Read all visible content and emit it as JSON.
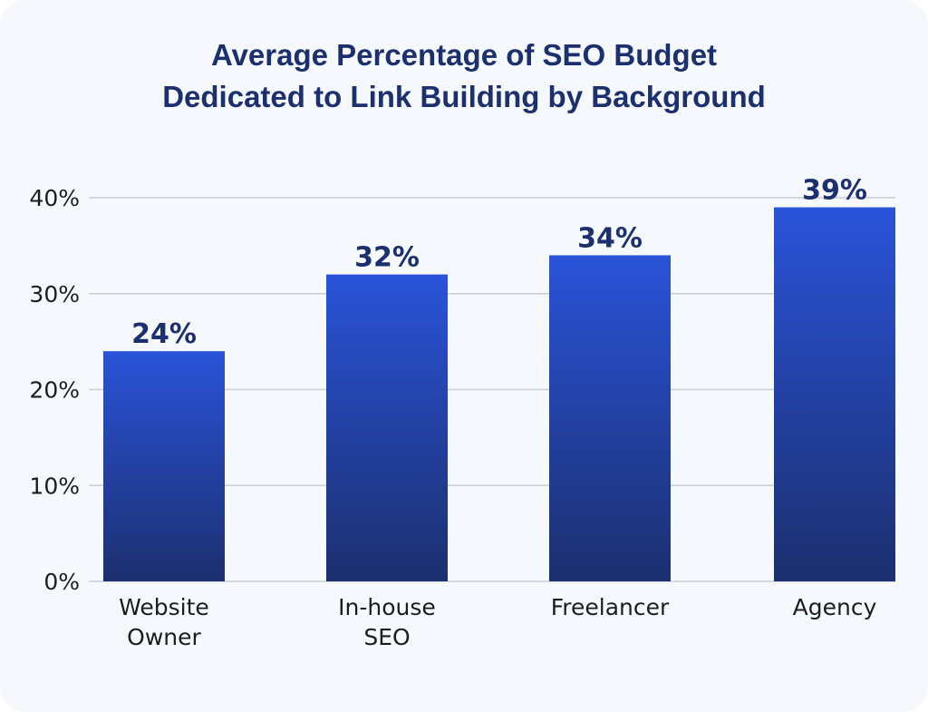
{
  "chart_data": {
    "type": "bar",
    "title_lines": [
      "Average Percentage of SEO Budget",
      "Dedicated to Link Building by Background"
    ],
    "categories": [
      [
        "Website",
        "Owner"
      ],
      [
        "In-house",
        "SEO"
      ],
      [
        "Freelancer"
      ],
      [
        "Agency"
      ]
    ],
    "values": [
      24,
      32,
      34,
      39
    ],
    "data_labels": [
      "24%",
      "32%",
      "34%",
      "39%"
    ],
    "y_ticks": [
      0,
      10,
      20,
      30,
      40
    ],
    "y_tick_labels": [
      "0%",
      "10%",
      "20%",
      "30%",
      "40%"
    ],
    "ylim": [
      0,
      40
    ],
    "grid": true,
    "colors": {
      "bar_top": "#2a53d8",
      "bar_bottom": "#1c2f6e",
      "grid": "#c9ced6",
      "title": "#1c2f6e",
      "background": "#f5f9fd"
    }
  }
}
